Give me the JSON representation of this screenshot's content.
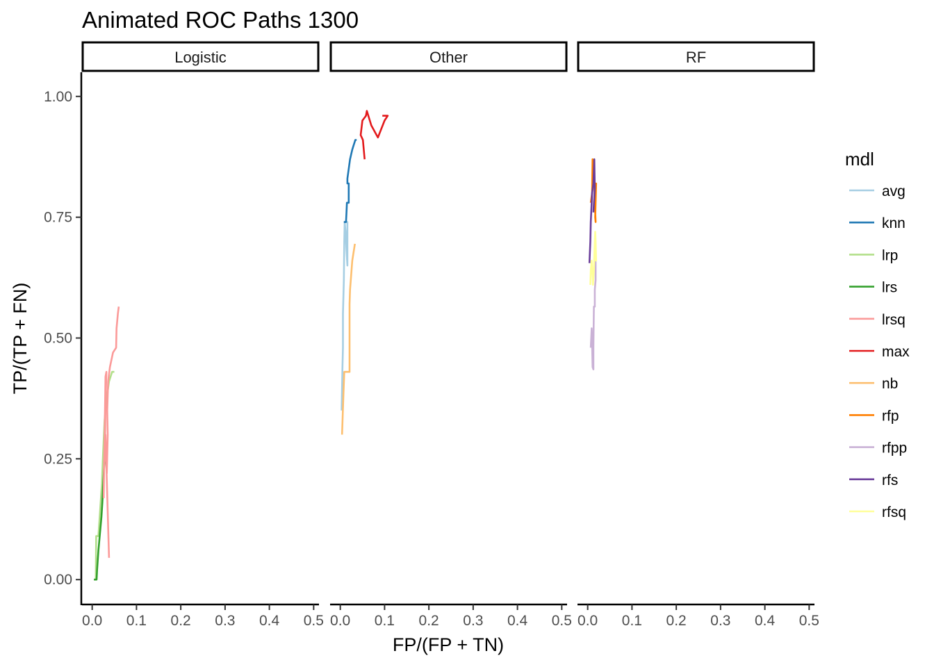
{
  "chart_data": {
    "type": "line",
    "title": "Animated ROC Paths 1300",
    "xlabel": "FP/(FP + TN)",
    "ylabel": "TP/(TP + FN)",
    "xlim": [
      -0.023,
      0.512
    ],
    "ylim": [
      -0.05,
      1.05
    ],
    "x_ticks": [
      0.0,
      0.1,
      0.2,
      0.3,
      0.4,
      0.5
    ],
    "x_tick_labels": [
      "0.0",
      "0.1",
      "0.2",
      "0.3",
      "0.4",
      "0.5"
    ],
    "y_ticks": [
      0.0,
      0.25,
      0.5,
      0.75,
      1.0
    ],
    "y_tick_labels": [
      "0.00",
      "0.25",
      "0.50",
      "0.75",
      "1.00"
    ],
    "legend_title": "mdl",
    "legend_position": "right",
    "facets": [
      "Logistic",
      "Other",
      "RF"
    ],
    "series": [
      {
        "name": "avg",
        "color": "#A6CEE3",
        "facet": "Other",
        "x": [
          0.003,
          0.005,
          0.006,
          0.006,
          0.008,
          0.009,
          0.01,
          0.012,
          0.014,
          0.016,
          0.016,
          0.012,
          0.008
        ],
        "y": [
          0.35,
          0.44,
          0.48,
          0.55,
          0.62,
          0.7,
          0.74,
          0.72,
          0.68,
          0.65,
          0.74,
          0.74,
          0.74
        ]
      },
      {
        "name": "knn",
        "color": "#1F78B4",
        "facet": "Other",
        "x": [
          0.008,
          0.013,
          0.014,
          0.015,
          0.019,
          0.019,
          0.016,
          0.016,
          0.022,
          0.027,
          0.034,
          0.037
        ],
        "y": [
          0.74,
          0.74,
          0.76,
          0.78,
          0.78,
          0.82,
          0.82,
          0.83,
          0.87,
          0.89,
          0.91,
          0.91
        ]
      },
      {
        "name": "lrp",
        "color": "#B2DF8A",
        "facet": "Logistic",
        "x": [
          0.004,
          0.008,
          0.009,
          0.014,
          0.014,
          0.022,
          0.024,
          0.028,
          0.032,
          0.038,
          0.045,
          0.047,
          0.05
        ],
        "y": [
          0.0,
          0.0,
          0.09,
          0.09,
          0.09,
          0.2,
          0.25,
          0.33,
          0.37,
          0.41,
          0.43,
          0.43,
          0.43
        ]
      },
      {
        "name": "lrs",
        "color": "#33A02C",
        "facet": "Logistic",
        "x": [
          0.004,
          0.01,
          0.011,
          0.014,
          0.018,
          0.021,
          0.023,
          0.025,
          0.028
        ],
        "y": [
          0.0,
          0.0,
          0.02,
          0.06,
          0.1,
          0.13,
          0.16,
          0.2,
          0.25
        ]
      },
      {
        "name": "lrsq",
        "color": "#FB9A99",
        "facet": "Logistic",
        "x": [
          0.038,
          0.03,
          0.027,
          0.026,
          0.03,
          0.032,
          0.03,
          0.029,
          0.033,
          0.035,
          0.034,
          0.036,
          0.04,
          0.047,
          0.054,
          0.055,
          0.058,
          0.06
        ],
        "y": [
          0.045,
          0.3,
          0.25,
          0.17,
          0.42,
          0.43,
          0.36,
          0.28,
          0.22,
          0.3,
          0.35,
          0.41,
          0.44,
          0.47,
          0.48,
          0.52,
          0.55,
          0.565
        ]
      },
      {
        "name": "max",
        "color": "#E31A1C",
        "facet": "Other",
        "x": [
          0.055,
          0.051,
          0.046,
          0.05,
          0.058,
          0.06,
          0.07,
          0.085,
          0.1,
          0.107,
          0.095
        ],
        "y": [
          0.87,
          0.91,
          0.92,
          0.95,
          0.96,
          0.97,
          0.94,
          0.915,
          0.95,
          0.96,
          0.96
        ]
      },
      {
        "name": "nb",
        "color": "#FDBF6F",
        "facet": "Other",
        "x": [
          0.004,
          0.007,
          0.009,
          0.015,
          0.021,
          0.021,
          0.021,
          0.022,
          0.027,
          0.033
        ],
        "y": [
          0.3,
          0.38,
          0.43,
          0.43,
          0.43,
          0.5,
          0.57,
          0.6,
          0.66,
          0.695
        ]
      },
      {
        "name": "rfp",
        "color": "#FF7F00",
        "facet": "RF",
        "x": [
          0.007,
          0.01,
          0.011,
          0.014,
          0.015,
          0.016,
          0.017,
          0.018,
          0.017,
          0.019,
          0.017
        ],
        "y": [
          0.78,
          0.8,
          0.87,
          0.86,
          0.82,
          0.79,
          0.76,
          0.74,
          0.75,
          0.82,
          0.78
        ]
      },
      {
        "name": "rfpp",
        "color": "#CAB2D6",
        "facet": "RF",
        "x": [
          0.007,
          0.009,
          0.01,
          0.011,
          0.013,
          0.013,
          0.014,
          0.016,
          0.016,
          0.018,
          0.018
        ],
        "y": [
          0.48,
          0.52,
          0.49,
          0.44,
          0.435,
          0.48,
          0.565,
          0.565,
          0.6,
          0.62,
          0.66
        ]
      },
      {
        "name": "rfs",
        "color": "#6A3D9A",
        "facet": "RF",
        "x": [
          0.004,
          0.006,
          0.007,
          0.009,
          0.01,
          0.013,
          0.014,
          0.015,
          0.016,
          0.013
        ],
        "y": [
          0.655,
          0.7,
          0.74,
          0.78,
          0.8,
          0.82,
          0.845,
          0.87,
          0.81,
          0.76
        ]
      },
      {
        "name": "rfsq",
        "color": "#FFFF99",
        "facet": "RF",
        "x": [
          0.006,
          0.007,
          0.009,
          0.011,
          0.012,
          0.014,
          0.016,
          0.017,
          0.018,
          0.019,
          0.017
        ],
        "y": [
          0.61,
          0.64,
          0.66,
          0.63,
          0.61,
          0.64,
          0.7,
          0.72,
          0.7,
          0.66,
          0.69
        ]
      }
    ]
  }
}
